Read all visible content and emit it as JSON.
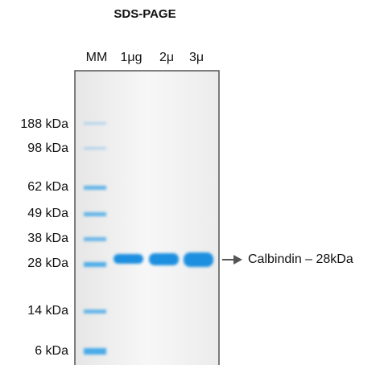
{
  "title": "SDS-PAGE",
  "lanes": [
    "MM",
    "1μg",
    "2μ",
    "3μ"
  ],
  "markers": [
    "188 kDa",
    "98 kDa",
    "62 kDa",
    "49 kDa",
    "38 kDa",
    "28 kDa",
    "14 kDa",
    "6 kDa"
  ],
  "annotation": "Calbindin – 28kDa"
}
